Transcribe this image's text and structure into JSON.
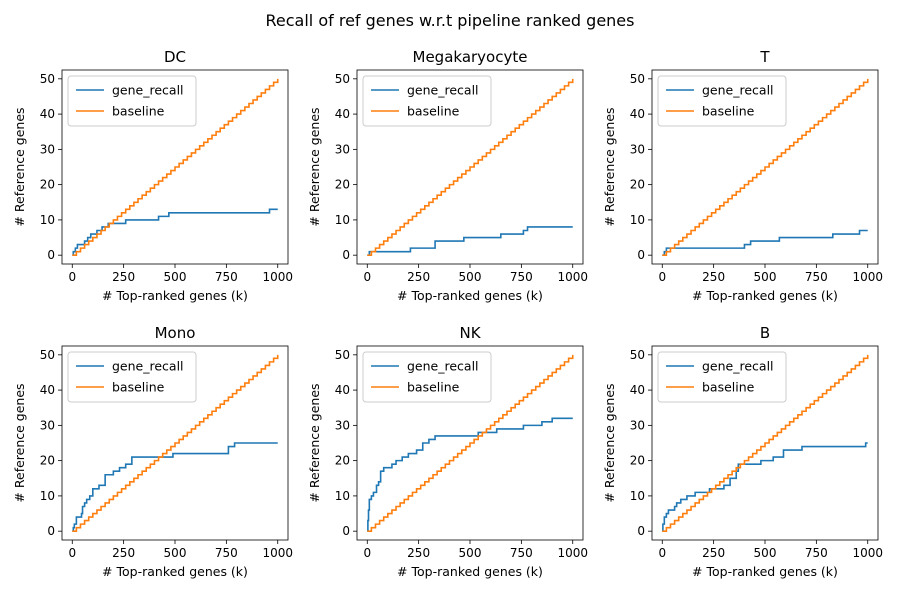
{
  "figure": {
    "suptitle": "Recall of ref genes w.r.t pipeline ranked genes"
  },
  "colors": {
    "gene_recall": "#1f77b4",
    "baseline": "#ff7f0e"
  },
  "chart_data": [
    {
      "type": "line",
      "title": "DC",
      "xlabel": "# Top-ranked genes (k)",
      "ylabel": "# Reference genes",
      "xlim": [
        0,
        1000
      ],
      "ylim": [
        0,
        50
      ],
      "xticks": [
        0,
        250,
        500,
        750,
        1000
      ],
      "yticks": [
        0,
        10,
        20,
        30,
        40,
        50
      ],
      "legend": "top-left",
      "series": [
        {
          "name": "gene_recall",
          "step": true,
          "points": [
            [
              0,
              0
            ],
            [
              5,
              1
            ],
            [
              15,
              2
            ],
            [
              25,
              3
            ],
            [
              60,
              4
            ],
            [
              75,
              5
            ],
            [
              90,
              6
            ],
            [
              120,
              7
            ],
            [
              145,
              8
            ],
            [
              175,
              9
            ],
            [
              260,
              10
            ],
            [
              420,
              11
            ],
            [
              470,
              12
            ],
            [
              960,
              13
            ],
            [
              1000,
              13
            ]
          ]
        },
        {
          "name": "baseline",
          "step": true,
          "points": [
            [
              0,
              0
            ],
            [
              1000,
              50
            ]
          ]
        }
      ]
    },
    {
      "type": "line",
      "title": "Megakaryocyte",
      "xlabel": "# Top-ranked genes (k)",
      "ylabel": "# Reference genes",
      "xlim": [
        0,
        1000
      ],
      "ylim": [
        0,
        50
      ],
      "xticks": [
        0,
        250,
        500,
        750,
        1000
      ],
      "yticks": [
        0,
        10,
        20,
        30,
        40,
        50
      ],
      "legend": "top-left",
      "series": [
        {
          "name": "gene_recall",
          "step": true,
          "points": [
            [
              0,
              0
            ],
            [
              10,
              1
            ],
            [
              210,
              2
            ],
            [
              330,
              4
            ],
            [
              470,
              5
            ],
            [
              650,
              6
            ],
            [
              760,
              7
            ],
            [
              780,
              8
            ],
            [
              1000,
              8
            ]
          ]
        },
        {
          "name": "baseline",
          "step": true,
          "points": [
            [
              0,
              0
            ],
            [
              1000,
              50
            ]
          ]
        }
      ]
    },
    {
      "type": "line",
      "title": "T",
      "xlabel": "# Top-ranked genes (k)",
      "ylabel": "# Reference genes",
      "xlim": [
        0,
        1000
      ],
      "ylim": [
        0,
        50
      ],
      "xticks": [
        0,
        250,
        500,
        750,
        1000
      ],
      "yticks": [
        0,
        10,
        20,
        30,
        40,
        50
      ],
      "legend": "top-left",
      "series": [
        {
          "name": "gene_recall",
          "step": true,
          "points": [
            [
              0,
              0
            ],
            [
              10,
              1
            ],
            [
              20,
              2
            ],
            [
              400,
              3
            ],
            [
              430,
              4
            ],
            [
              570,
              5
            ],
            [
              830,
              6
            ],
            [
              960,
              7
            ],
            [
              1000,
              7
            ]
          ]
        },
        {
          "name": "baseline",
          "step": true,
          "points": [
            [
              0,
              0
            ],
            [
              1000,
              50
            ]
          ]
        }
      ]
    },
    {
      "type": "line",
      "title": "Mono",
      "xlabel": "# Top-ranked genes (k)",
      "ylabel": "# Reference genes",
      "xlim": [
        0,
        1000
      ],
      "ylim": [
        0,
        50
      ],
      "xticks": [
        0,
        250,
        500,
        750,
        1000
      ],
      "yticks": [
        0,
        10,
        20,
        30,
        40,
        50
      ],
      "legend": "top-left",
      "series": [
        {
          "name": "gene_recall",
          "step": true,
          "points": [
            [
              0,
              0
            ],
            [
              5,
              1
            ],
            [
              10,
              2
            ],
            [
              20,
              4
            ],
            [
              45,
              5
            ],
            [
              50,
              7
            ],
            [
              60,
              8
            ],
            [
              70,
              9
            ],
            [
              85,
              10
            ],
            [
              100,
              12
            ],
            [
              130,
              13
            ],
            [
              160,
              16
            ],
            [
              200,
              17
            ],
            [
              230,
              18
            ],
            [
              260,
              19
            ],
            [
              290,
              21
            ],
            [
              490,
              22
            ],
            [
              760,
              24
            ],
            [
              790,
              25
            ],
            [
              1000,
              25
            ]
          ]
        },
        {
          "name": "baseline",
          "step": true,
          "points": [
            [
              0,
              0
            ],
            [
              1000,
              50
            ]
          ]
        }
      ]
    },
    {
      "type": "line",
      "title": "NK",
      "xlabel": "# Top-ranked genes (k)",
      "ylabel": "# Reference genes",
      "xlim": [
        0,
        1000
      ],
      "ylim": [
        0,
        50
      ],
      "xticks": [
        0,
        250,
        500,
        750,
        1000
      ],
      "yticks": [
        0,
        10,
        20,
        30,
        40,
        50
      ],
      "legend": "top-left",
      "series": [
        {
          "name": "gene_recall",
          "step": true,
          "points": [
            [
              0,
              0
            ],
            [
              3,
              3
            ],
            [
              6,
              6
            ],
            [
              10,
              9
            ],
            [
              20,
              10
            ],
            [
              30,
              11
            ],
            [
              45,
              13
            ],
            [
              55,
              14
            ],
            [
              65,
              17
            ],
            [
              80,
              18
            ],
            [
              120,
              19
            ],
            [
              140,
              20
            ],
            [
              170,
              21
            ],
            [
              200,
              22
            ],
            [
              240,
              23
            ],
            [
              270,
              25
            ],
            [
              300,
              26
            ],
            [
              330,
              27
            ],
            [
              540,
              28
            ],
            [
              630,
              29
            ],
            [
              760,
              30
            ],
            [
              850,
              31
            ],
            [
              900,
              32
            ],
            [
              1000,
              32
            ]
          ]
        },
        {
          "name": "baseline",
          "step": true,
          "points": [
            [
              0,
              0
            ],
            [
              1000,
              50
            ]
          ]
        }
      ]
    },
    {
      "type": "line",
      "title": "B",
      "xlabel": "# Top-ranked genes (k)",
      "ylabel": "# Reference genes",
      "xlim": [
        0,
        1000
      ],
      "ylim": [
        0,
        50
      ],
      "xticks": [
        0,
        250,
        500,
        750,
        1000
      ],
      "yticks": [
        0,
        10,
        20,
        30,
        40,
        50
      ],
      "legend": "top-left",
      "series": [
        {
          "name": "gene_recall",
          "step": true,
          "points": [
            [
              0,
              0
            ],
            [
              3,
              2
            ],
            [
              10,
              4
            ],
            [
              20,
              5
            ],
            [
              30,
              6
            ],
            [
              60,
              7
            ],
            [
              70,
              8
            ],
            [
              90,
              9
            ],
            [
              120,
              10
            ],
            [
              160,
              11
            ],
            [
              230,
              12
            ],
            [
              300,
              13
            ],
            [
              330,
              15
            ],
            [
              360,
              17
            ],
            [
              370,
              19
            ],
            [
              480,
              20
            ],
            [
              540,
              21
            ],
            [
              590,
              23
            ],
            [
              680,
              24
            ],
            [
              990,
              25
            ],
            [
              1000,
              25
            ]
          ]
        },
        {
          "name": "baseline",
          "step": true,
          "points": [
            [
              0,
              0
            ],
            [
              1000,
              50
            ]
          ]
        }
      ]
    }
  ]
}
